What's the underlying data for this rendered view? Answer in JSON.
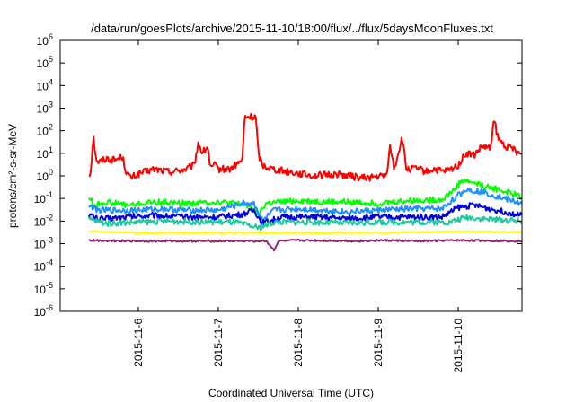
{
  "chart_data": {
    "type": "line",
    "title": "/data/run/goesPlots/archive/2015-11-10/18:00/flux/../flux/5daysMoonFluxes.txt",
    "xlabel": "Coordinated Universal Time (UTC)",
    "ylabel": "protons/cm²-s-sr-MeV",
    "yscale": "log",
    "ylim": [
      1e-06,
      1000000.0
    ],
    "xlim": [
      -1.0,
      3.83
    ],
    "x_origin": "2015-11-06",
    "grid": false,
    "legend": "none",
    "x_ticks": [
      {
        "pos": 0,
        "label": "2015-11-6"
      },
      {
        "pos": 1,
        "label": "2015-11-7"
      },
      {
        "pos": 2,
        "label": "2015-11-8"
      },
      {
        "pos": 3,
        "label": "2015-11-9"
      },
      {
        "pos": 4,
        "label": "2015-11-10"
      }
    ],
    "y_ticks": [
      {
        "base": "10",
        "exp": "-6",
        "value": 1e-06
      },
      {
        "base": "10",
        "exp": "-5",
        "value": 1e-05
      },
      {
        "base": "10",
        "exp": "-4",
        "value": 0.0001
      },
      {
        "base": "10",
        "exp": "-3",
        "value": 0.001
      },
      {
        "base": "10",
        "exp": "-2",
        "value": 0.01
      },
      {
        "base": "10",
        "exp": "-1",
        "value": 0.1
      },
      {
        "base": "10",
        "exp": "0",
        "value": 1
      },
      {
        "base": "10",
        "exp": "1",
        "value": 10
      },
      {
        "base": "10",
        "exp": "2",
        "value": 100
      },
      {
        "base": "10",
        "exp": "3",
        "value": 1000
      },
      {
        "base": "10",
        "exp": "4",
        "value": 10000
      },
      {
        "base": "10",
        "exp": "5",
        "value": 100000
      },
      {
        "base": "10",
        "exp": "6",
        "value": 1000000
      }
    ],
    "series": [
      {
        "color": "#ff0000",
        "knots": [
          [
            -0.62,
            1.1
          ],
          [
            -0.6,
            1.3
          ],
          [
            -0.56,
            70
          ],
          [
            -0.54,
            8
          ],
          [
            -0.5,
            4
          ],
          [
            -0.4,
            6
          ],
          [
            -0.3,
            5
          ],
          [
            -0.2,
            7
          ],
          [
            -0.15,
            1.5
          ],
          [
            -0.1,
            0.8
          ],
          [
            0.0,
            1.2
          ],
          [
            0.2,
            2
          ],
          [
            0.4,
            1.5
          ],
          [
            0.6,
            2
          ],
          [
            0.7,
            3
          ],
          [
            0.75,
            30
          ],
          [
            0.8,
            10
          ],
          [
            0.87,
            20
          ],
          [
            0.9,
            2
          ],
          [
            0.95,
            3
          ],
          [
            1.0,
            2
          ],
          [
            1.15,
            2
          ],
          [
            1.3,
            5
          ],
          [
            1.33,
            400
          ],
          [
            1.47,
            400
          ],
          [
            1.5,
            10
          ],
          [
            1.55,
            3
          ],
          [
            1.7,
            2
          ],
          [
            1.9,
            1.5
          ],
          [
            2.2,
            1
          ],
          [
            2.5,
            1.2
          ],
          [
            2.8,
            0.8
          ],
          [
            3.1,
            1
          ],
          [
            3.15,
            20
          ],
          [
            3.2,
            2
          ],
          [
            3.3,
            50
          ],
          [
            3.35,
            2
          ],
          [
            3.5,
            2
          ],
          [
            3.6,
            1.5
          ],
          [
            3.7,
            2
          ],
          [
            3.8,
            1.5
          ],
          [
            3.9,
            1.8
          ],
          [
            4.0,
            3
          ],
          [
            4.1,
            10
          ],
          [
            4.2,
            8
          ],
          [
            4.3,
            20
          ],
          [
            4.4,
            15
          ],
          [
            4.45,
            300
          ],
          [
            4.5,
            40
          ],
          [
            4.6,
            20
          ],
          [
            4.7,
            15
          ],
          [
            4.8,
            8
          ]
        ]
      },
      {
        "color": "#00ff00",
        "knots": [
          [
            -0.62,
            0.12
          ],
          [
            -0.55,
            0.05
          ],
          [
            -0.4,
            0.07
          ],
          [
            -0.1,
            0.05
          ],
          [
            0.2,
            0.07
          ],
          [
            0.6,
            0.06
          ],
          [
            1.0,
            0.07
          ],
          [
            1.4,
            0.05
          ],
          [
            1.5,
            0.02
          ],
          [
            1.6,
            0.06
          ],
          [
            2.0,
            0.08
          ],
          [
            2.3,
            0.07
          ],
          [
            2.6,
            0.07
          ],
          [
            3.0,
            0.06
          ],
          [
            3.4,
            0.08
          ],
          [
            3.8,
            0.09
          ],
          [
            3.95,
            0.25
          ],
          [
            4.05,
            0.65
          ],
          [
            4.2,
            0.5
          ],
          [
            4.4,
            0.3
          ],
          [
            4.6,
            0.2
          ],
          [
            4.8,
            0.12
          ]
        ]
      },
      {
        "color": "#1e90ff",
        "knots": [
          [
            -0.62,
            0.05
          ],
          [
            -0.5,
            0.03
          ],
          [
            -0.3,
            0.03
          ],
          [
            0.0,
            0.03
          ],
          [
            0.3,
            0.035
          ],
          [
            0.6,
            0.03
          ],
          [
            1.0,
            0.03
          ],
          [
            1.3,
            0.06
          ],
          [
            1.45,
            0.06
          ],
          [
            1.55,
            0.01
          ],
          [
            1.7,
            0.03
          ],
          [
            2.0,
            0.035
          ],
          [
            2.3,
            0.03
          ],
          [
            2.6,
            0.025
          ],
          [
            3.0,
            0.03
          ],
          [
            3.4,
            0.035
          ],
          [
            3.8,
            0.035
          ],
          [
            3.95,
            0.1
          ],
          [
            4.1,
            0.25
          ],
          [
            4.3,
            0.2
          ],
          [
            4.5,
            0.12
          ],
          [
            4.8,
            0.06
          ]
        ]
      },
      {
        "color": "#0000dd",
        "knots": [
          [
            -0.62,
            0.02
          ],
          [
            -0.5,
            0.012
          ],
          [
            -0.2,
            0.015
          ],
          [
            0.2,
            0.018
          ],
          [
            0.6,
            0.015
          ],
          [
            1.0,
            0.015
          ],
          [
            1.3,
            0.02
          ],
          [
            1.45,
            0.03
          ],
          [
            1.55,
            0.008
          ],
          [
            1.8,
            0.015
          ],
          [
            2.2,
            0.015
          ],
          [
            2.6,
            0.013
          ],
          [
            3.0,
            0.015
          ],
          [
            3.4,
            0.015
          ],
          [
            3.8,
            0.015
          ],
          [
            4.0,
            0.04
          ],
          [
            4.2,
            0.05
          ],
          [
            4.4,
            0.035
          ],
          [
            4.6,
            0.025
          ],
          [
            4.8,
            0.018
          ]
        ]
      },
      {
        "color": "#20c8a0",
        "knots": [
          [
            -0.62,
            0.012
          ],
          [
            -0.4,
            0.008
          ],
          [
            0.0,
            0.009
          ],
          [
            0.4,
            0.01
          ],
          [
            0.8,
            0.009
          ],
          [
            1.2,
            0.009
          ],
          [
            1.5,
            0.005
          ],
          [
            1.7,
            0.009
          ],
          [
            2.2,
            0.009
          ],
          [
            2.6,
            0.008
          ],
          [
            3.0,
            0.009
          ],
          [
            3.5,
            0.009
          ],
          [
            3.9,
            0.009
          ],
          [
            4.1,
            0.015
          ],
          [
            4.4,
            0.012
          ],
          [
            4.8,
            0.01
          ]
        ]
      },
      {
        "color": "#ffff00",
        "knots": [
          [
            -0.62,
            0.0035
          ],
          [
            0.0,
            0.003
          ],
          [
            1.0,
            0.003
          ],
          [
            2.0,
            0.003
          ],
          [
            3.0,
            0.003
          ],
          [
            4.0,
            0.0035
          ],
          [
            4.8,
            0.0032
          ]
        ]
      },
      {
        "color": "#8b2a6b",
        "knots": [
          [
            -0.62,
            0.0014
          ],
          [
            0.0,
            0.0013
          ],
          [
            0.4,
            0.0013
          ],
          [
            1.0,
            0.0013
          ],
          [
            1.6,
            0.0013
          ],
          [
            1.7,
            0.0005
          ],
          [
            1.75,
            0.0013
          ],
          [
            2.0,
            0.0014
          ],
          [
            2.8,
            0.0013
          ],
          [
            3.0,
            0.0014
          ],
          [
            3.5,
            0.0013
          ],
          [
            4.0,
            0.0014
          ],
          [
            4.8,
            0.0013
          ]
        ]
      }
    ]
  }
}
